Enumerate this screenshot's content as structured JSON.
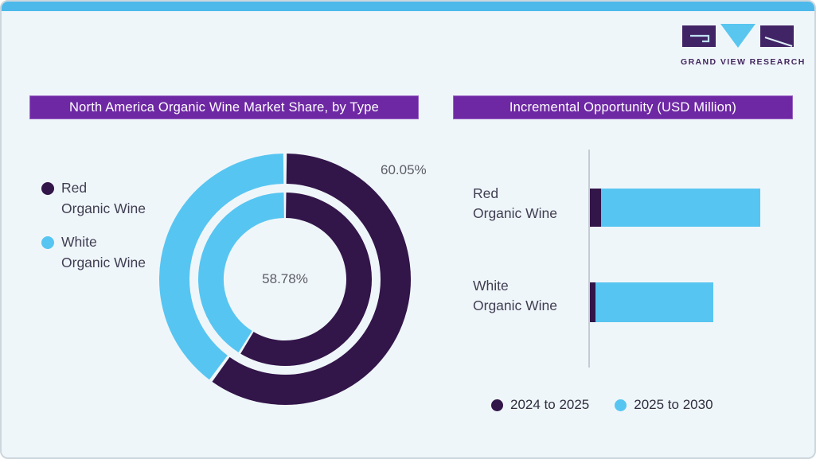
{
  "brand": {
    "logo_text": "GRAND VIEW RESEARCH",
    "logo_block_color": "#412465",
    "logo_triangle_color": "#59c6f0"
  },
  "colors": {
    "accent_bar": "#4cb9ea",
    "card_background": "#eff6fa",
    "title_bar_background": "#6e28a4",
    "dark_purple_series": "#321549",
    "light_blue_series": "#57c5f1",
    "percent_label_gray": "#5c5c66",
    "category_text": "#403e52",
    "axis_line": "#c5cbd3"
  },
  "chart_data": [
    {
      "type": "pie",
      "subtype": "double-ring-donut",
      "title": "North America Organic Wine Market Share, by Type",
      "legend_position": "left",
      "start_angle": "12 o'clock, clockwise",
      "slice_labels": [
        "Red Organic Wine",
        "White Organic Wine"
      ],
      "slice_colors": [
        "#321549",
        "#57c5f1"
      ],
      "legend": [
        {
          "line1": "Red",
          "line2": "Organic Wine"
        },
        {
          "line1": "White",
          "line2": "Organic Wine"
        }
      ],
      "rings": [
        {
          "name": "outer",
          "values": [
            60.05,
            39.95
          ],
          "shown_label": "60.05%"
        },
        {
          "name": "inner",
          "values": [
            58.78,
            41.22
          ],
          "shown_label": "58.78%"
        }
      ]
    },
    {
      "type": "bar",
      "orientation": "horizontal",
      "stacked": true,
      "title": "Incremental Opportunity (USD Million)",
      "categories": [
        "Red Organic Wine",
        "White Organic Wine"
      ],
      "category_lines": [
        [
          "Red",
          "Organic Wine"
        ],
        [
          "White",
          "Organic Wine"
        ]
      ],
      "series": [
        {
          "name": "2024 to 2025",
          "color": "#321549",
          "values": [
            14,
            7
          ]
        },
        {
          "name": "2025 to 2030",
          "color": "#57c5f1",
          "values": [
            200,
            148
          ]
        }
      ],
      "value_axis": "unlabeled (no ticks, no gridlines)",
      "units": "relative estimate from bar lengths, USD Million scale not shown",
      "legend_position": "bottom"
    }
  ]
}
